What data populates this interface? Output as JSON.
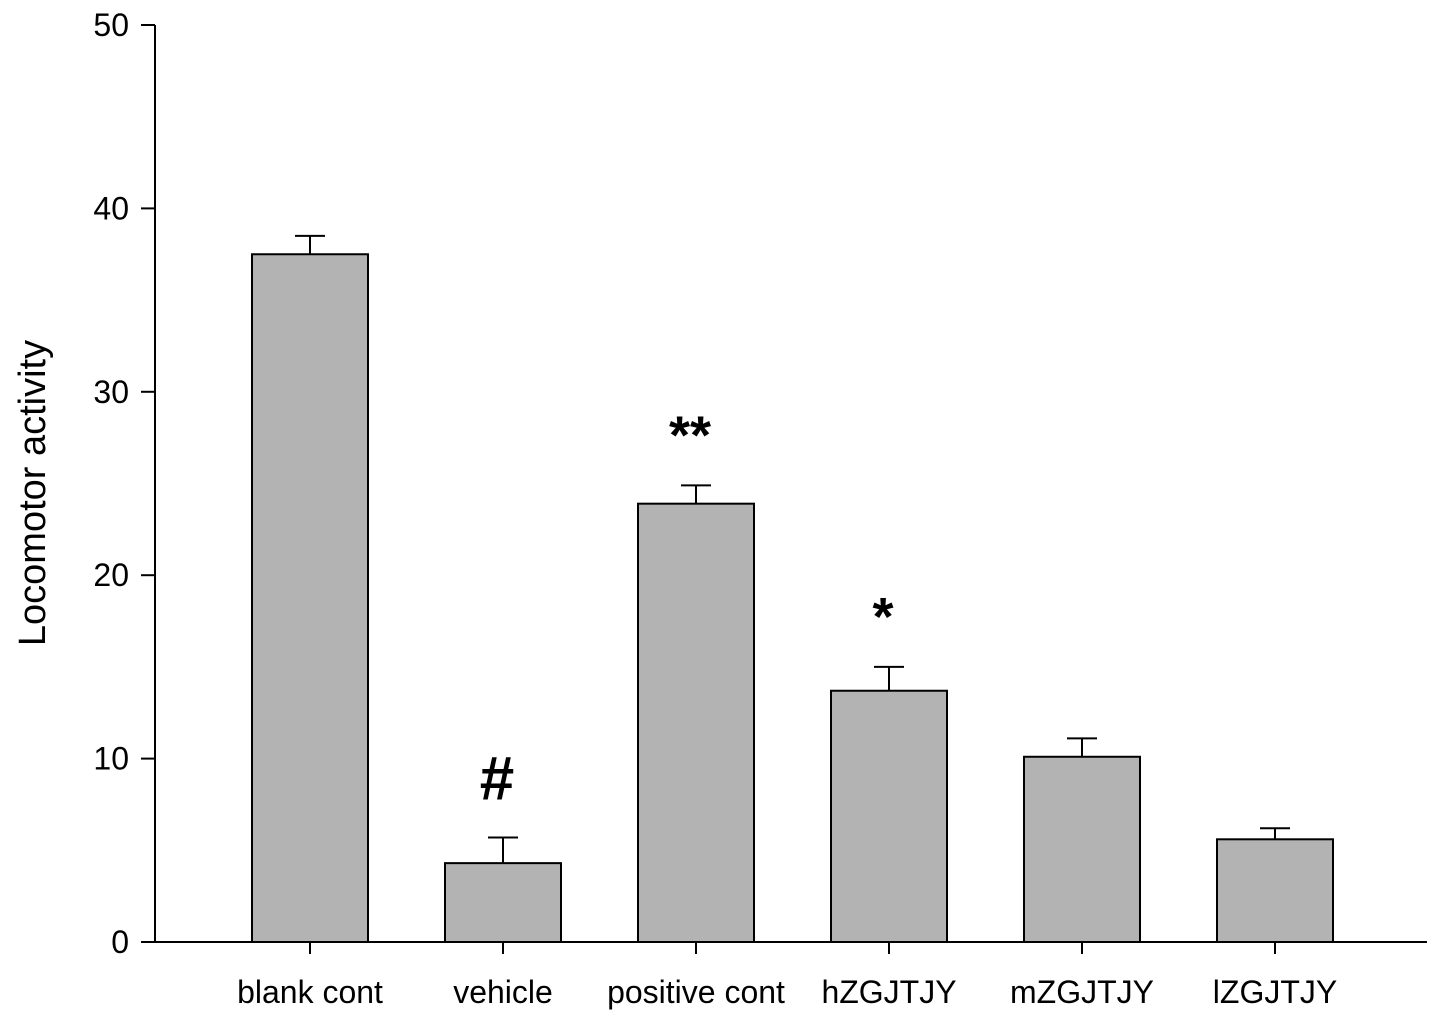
{
  "chart_data": {
    "type": "bar",
    "ylabel": "Locomotor activity",
    "xlabel": "",
    "ylim": [
      0,
      50
    ],
    "yticks": [
      0,
      10,
      20,
      30,
      40,
      50
    ],
    "categories": [
      "blank cont",
      "vehicle",
      "positive cont",
      "hZGJTJY",
      "mZGJTJY",
      "lZGJTJY"
    ],
    "values": [
      37.5,
      4.3,
      23.9,
      13.7,
      10.1,
      5.6
    ],
    "errors": [
      1.0,
      1.4,
      1.0,
      1.3,
      1.0,
      0.6
    ],
    "annotations": [
      "",
      "#",
      "**",
      "*",
      "",
      ""
    ],
    "bar_color": "#b3b3b3",
    "grid": false
  }
}
